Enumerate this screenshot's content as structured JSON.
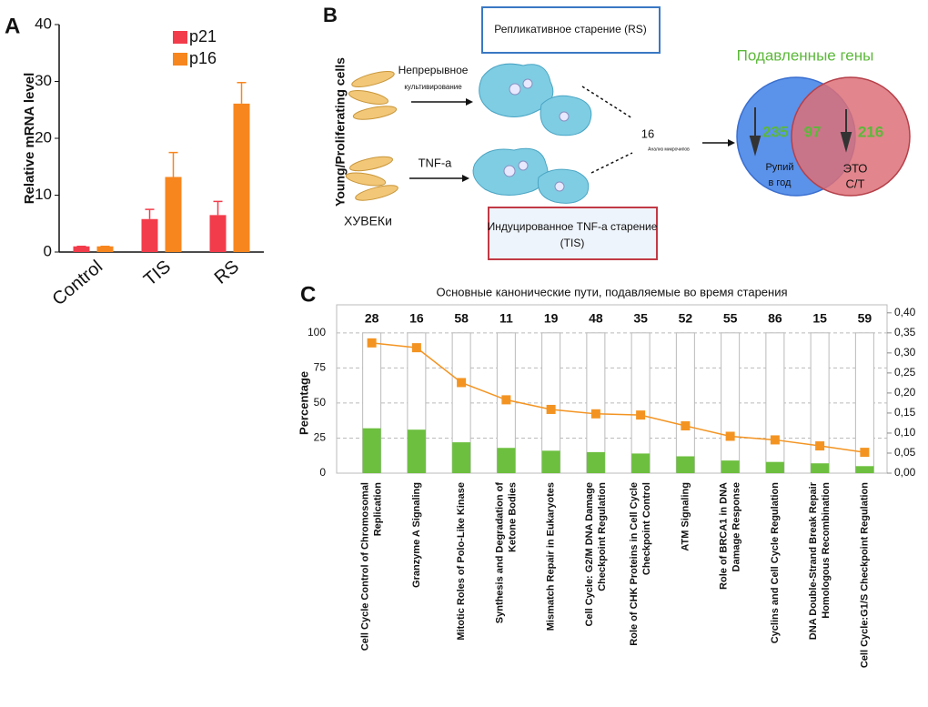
{
  "panel_labels": [
    "A",
    "B",
    "C"
  ],
  "chart_data": [
    {
      "type": "bar",
      "ylabel": "Relative mRNA level",
      "categories": [
        "Control",
        "TIS",
        "RS"
      ],
      "series": [
        {
          "name": "p21",
          "color": "#f23c4b",
          "values": [
            1,
            5.8,
            6.5
          ],
          "errors": [
            0,
            1.7,
            2.4
          ]
        },
        {
          "name": "p16",
          "color": "#f7861e",
          "values": [
            1,
            13.2,
            26.1
          ],
          "errors": [
            0,
            4.3,
            3.7
          ]
        }
      ],
      "ylim": [
        0,
        40
      ],
      "yticks": [
        0,
        10,
        20,
        30,
        40
      ],
      "grid": false,
      "legend": "top"
    },
    {
      "type": "bar",
      "title": "Основные канонические пути, подавляемые во время старения",
      "ylabel": "Percentage",
      "categories": [
        [
          "Cell Cycle Control of Chromosomal",
          "Replication"
        ],
        [
          "Granzyme A Signaling"
        ],
        [
          "Mitotic Roles of Polo-Like Kinase"
        ],
        [
          "Synthesis and Degradation of",
          "Ketone Bodies"
        ],
        [
          "Mismatch Repair in Eukaryotes"
        ],
        [
          "Cell Cycle: G2/M DNA Damage",
          "Checkpoint Regulation"
        ],
        [
          "Role of CHK Proteins  in Cell Cycle",
          "Checkpoint Control"
        ],
        [
          "ATM Signaling"
        ],
        [
          "Role of BRCA1 in DNA",
          "Damage Response"
        ],
        [
          "Cyclins and Cell Cycle Regulation"
        ],
        [
          "DNA Double-Strand Break Repair",
          "Homologous Recombination"
        ],
        [
          "Cell Cycle:G1/S Checkpoint Regulation"
        ]
      ],
      "counts": [
        28,
        16,
        58,
        11,
        19,
        48,
        35,
        52,
        55,
        86,
        15,
        59
      ],
      "series": [
        {
          "color": "#6dbf3f",
          "values": [
            32,
            31,
            22,
            18,
            16,
            15,
            14,
            12,
            9,
            8,
            7,
            5
          ]
        },
        {
          "color": "#f39422",
          "axis": "y2",
          "values": [
            0.325,
            0.313,
            0.226,
            0.183,
            0.159,
            0.148,
            0.145,
            0.118,
            0.092,
            0.083,
            0.068,
            0.052
          ]
        }
      ],
      "ylim": [
        0,
        120
      ],
      "yticks": [
        0,
        25,
        50,
        75,
        100
      ],
      "y2lim": [
        0,
        0.42
      ],
      "y2ticks": [
        {
          "value": 0,
          "label": "0,00"
        },
        {
          "value": 0.05,
          "label": "0,05"
        },
        {
          "value": 0.1,
          "label": "0,10"
        },
        {
          "value": 0.15,
          "label": "0,15"
        },
        {
          "value": 0.2,
          "label": "0,20"
        },
        {
          "value": 0.25,
          "label": "0,25"
        },
        {
          "value": 0.3,
          "label": "0,30"
        },
        {
          "value": 0.35,
          "label": "0,35"
        },
        {
          "value": 0.4,
          "label": "0,40"
        }
      ],
      "grid": true
    }
  ],
  "diagram": {
    "side_label": "Young/Proliferating cells",
    "cells_label": "ХУВЕКи",
    "arrow_top": [
      "Непрерывное",
      "культивирование"
    ],
    "arrow_bottom": "TNF-a",
    "box_rs": "Репликативное старение (RS)",
    "box_tis": [
      "Индуцированное TNF-a старение",
      "(TIS)"
    ],
    "microarray_count": "16",
    "microarray_label": "Анализ микрочипов",
    "venn_title": "Подавленные гены",
    "venn_left": "235",
    "venn_mid": "97",
    "venn_right": "216",
    "venn_left_label": [
      "Рупий",
      "в год"
    ],
    "venn_right_label": [
      "ЭТО",
      "С/Т"
    ]
  }
}
